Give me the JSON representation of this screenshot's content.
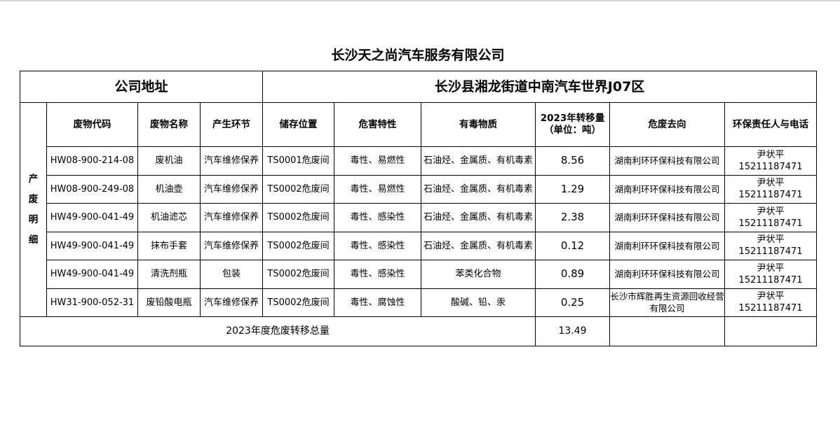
{
  "title": "长沙天之尚汽车服务有限公司",
  "address_label": "公司地址",
  "address_value": "长沙县湘龙街道中南汽车世界J07区",
  "section_label": "产废明细",
  "headers": [
    "废物代码",
    "废物名称",
    "产生环节",
    "储存位置",
    "危害特性",
    "有毒物质",
    "2023年转移量（单位：吨）",
    "危废去向",
    "环保责任人与电话"
  ],
  "rows": [
    [
      "HW08-900-214-08",
      "废机油",
      "汽车维修保养",
      "TS0001危废间",
      "毒性、易燃性",
      "石油烃、金属质、有机毒素",
      "8.56",
      "湖南利环环保科技有限公司",
      "尹状平",
      "15211187471"
    ],
    [
      "HW08-900-249-08",
      "机油壶",
      "汽车维修保养",
      "TS0002危废间",
      "毒性、易燃性",
      "石油烃、金属质、有机毒素",
      "1.29",
      "湖南利环环保科技有限公司",
      "尹状平",
      "15211187471"
    ],
    [
      "HW49-900-041-49",
      "机油滤芯",
      "汽车维修保养",
      "TS0002危废间",
      "毒性、感染性",
      "石油烃、金属质、有机毒素",
      "2.38",
      "湖南利环环保科技有限公司",
      "尹状平",
      "15211187471"
    ],
    [
      "HW49-900-041-49",
      "抹布手套",
      "汽车维修保养",
      "TS0002危废间",
      "毒性、感染性",
      "石油烃、金属质、有机毒素",
      "0.12",
      "湖南利环环保科技有限公司",
      "尹状平",
      "15211187471"
    ],
    [
      "HW49-900-041-49",
      "清洗剂瓶",
      "包装",
      "TS0002危废间",
      "毒性、感染性",
      "苯类化合物",
      "0.89",
      "湖南利环环保科技有限公司",
      "尹状平",
      "15211187471"
    ],
    [
      "HW31-900-052-31",
      "废铅酸电瓶",
      "汽车维修保养",
      "TS0002危废间",
      "毒性、腐蚀性",
      "酸碱、铅、汞",
      "0.25",
      "长沙市辉胜再生资源回收经营有限公司",
      "尹状平",
      "15211187471"
    ]
  ],
  "total_label": "2023年度危废转移总量",
  "total_value": "13.49"
}
